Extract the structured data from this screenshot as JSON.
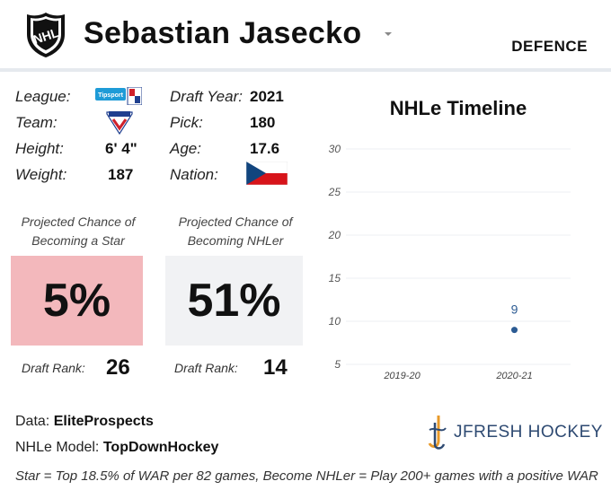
{
  "header": {
    "player_name": "Sebastian Jasecko",
    "position": "DEFENCE",
    "logo_icon": "nhl-shield-logo",
    "dropdown_icon": "caret-down-icon"
  },
  "bio": {
    "league_label": "League:",
    "league_icon": "tipsport-liga-logo",
    "team_label": "Team:",
    "team_icon": "slovan-team-logo",
    "height_label": "Height:",
    "height_value": "6' 4\"",
    "weight_label": "Weight:",
    "weight_value": "187",
    "draft_year_label": "Draft Year:",
    "draft_year_value": "2021",
    "pick_label": "Pick:",
    "pick_value": "180",
    "age_label": "Age:",
    "age_value": "17.6",
    "nation_label": "Nation:",
    "nation_icon": "czech-flag-icon"
  },
  "projections": {
    "star": {
      "label_line1": "Projected Chance of",
      "label_line2": "Becoming a Star",
      "value": "5%",
      "rank_label": "Draft Rank:",
      "rank_value": "26",
      "color": "#f3b8bc"
    },
    "nhler": {
      "label_line1": "Projected Chance of",
      "label_line2": "Becoming NHLer",
      "value": "51%",
      "rank_label": "Draft Rank:",
      "rank_value": "14",
      "color": "#f1f2f4"
    }
  },
  "chart_data": {
    "type": "scatter",
    "title": "NHLe Timeline",
    "categories": [
      "2019-20",
      "2020-21"
    ],
    "series": [
      {
        "values": [
          null,
          9
        ],
        "data_labels": [
          "",
          "9"
        ],
        "color": "#2c5b93"
      }
    ],
    "yticks": [
      5,
      10,
      15,
      20,
      25,
      30
    ],
    "ylim": [
      5,
      30
    ],
    "grid": true,
    "legend": "none"
  },
  "footer": {
    "data_label": "Data:",
    "data_source": "EliteProspects",
    "model_label": "NHLe Model:",
    "model_source": "TopDownHockey",
    "brand": "JFRESH HOCKEY",
    "brand_icon": "jfresh-hockey-logo",
    "footnote": "Star = Top 18.5% of WAR per 82 games, Become NHLer = Play 200+ games with a positive WAR"
  }
}
